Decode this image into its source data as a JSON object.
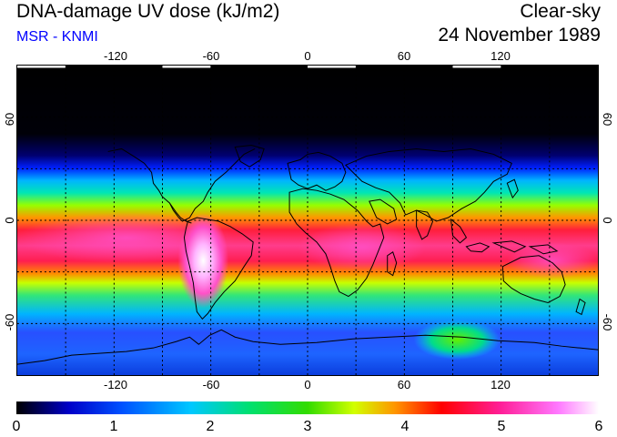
{
  "header": {
    "title": "DNA-damage UV dose (kJ/m2)",
    "organization": "MSR - KNMI",
    "sky_condition": "Clear-sky",
    "date": "24 November 1989"
  },
  "colors": {
    "organization_text": "#0000ff",
    "coastline": "#000000",
    "grid": "#000000"
  },
  "map": {
    "projection": "equirectangular",
    "lon_range": [
      -180,
      180
    ],
    "lat_range": [
      -90,
      90
    ],
    "lon_ticks": [
      "-120",
      "-60",
      "0",
      "60",
      "120"
    ],
    "lat_ticks": [
      "60",
      "0",
      "-60"
    ]
  },
  "colorbar": {
    "min": 0,
    "max": 6,
    "labels": [
      "0",
      "1",
      "2",
      "3",
      "4",
      "5",
      "6"
    ],
    "palette": [
      "#000000",
      "#0000c8",
      "#0050ff",
      "#00c8ff",
      "#00e070",
      "#32dc00",
      "#d2ff00",
      "#ff9600",
      "#ff0000",
      "#ff1e96",
      "#ff78ff",
      "#ffffff"
    ]
  }
}
